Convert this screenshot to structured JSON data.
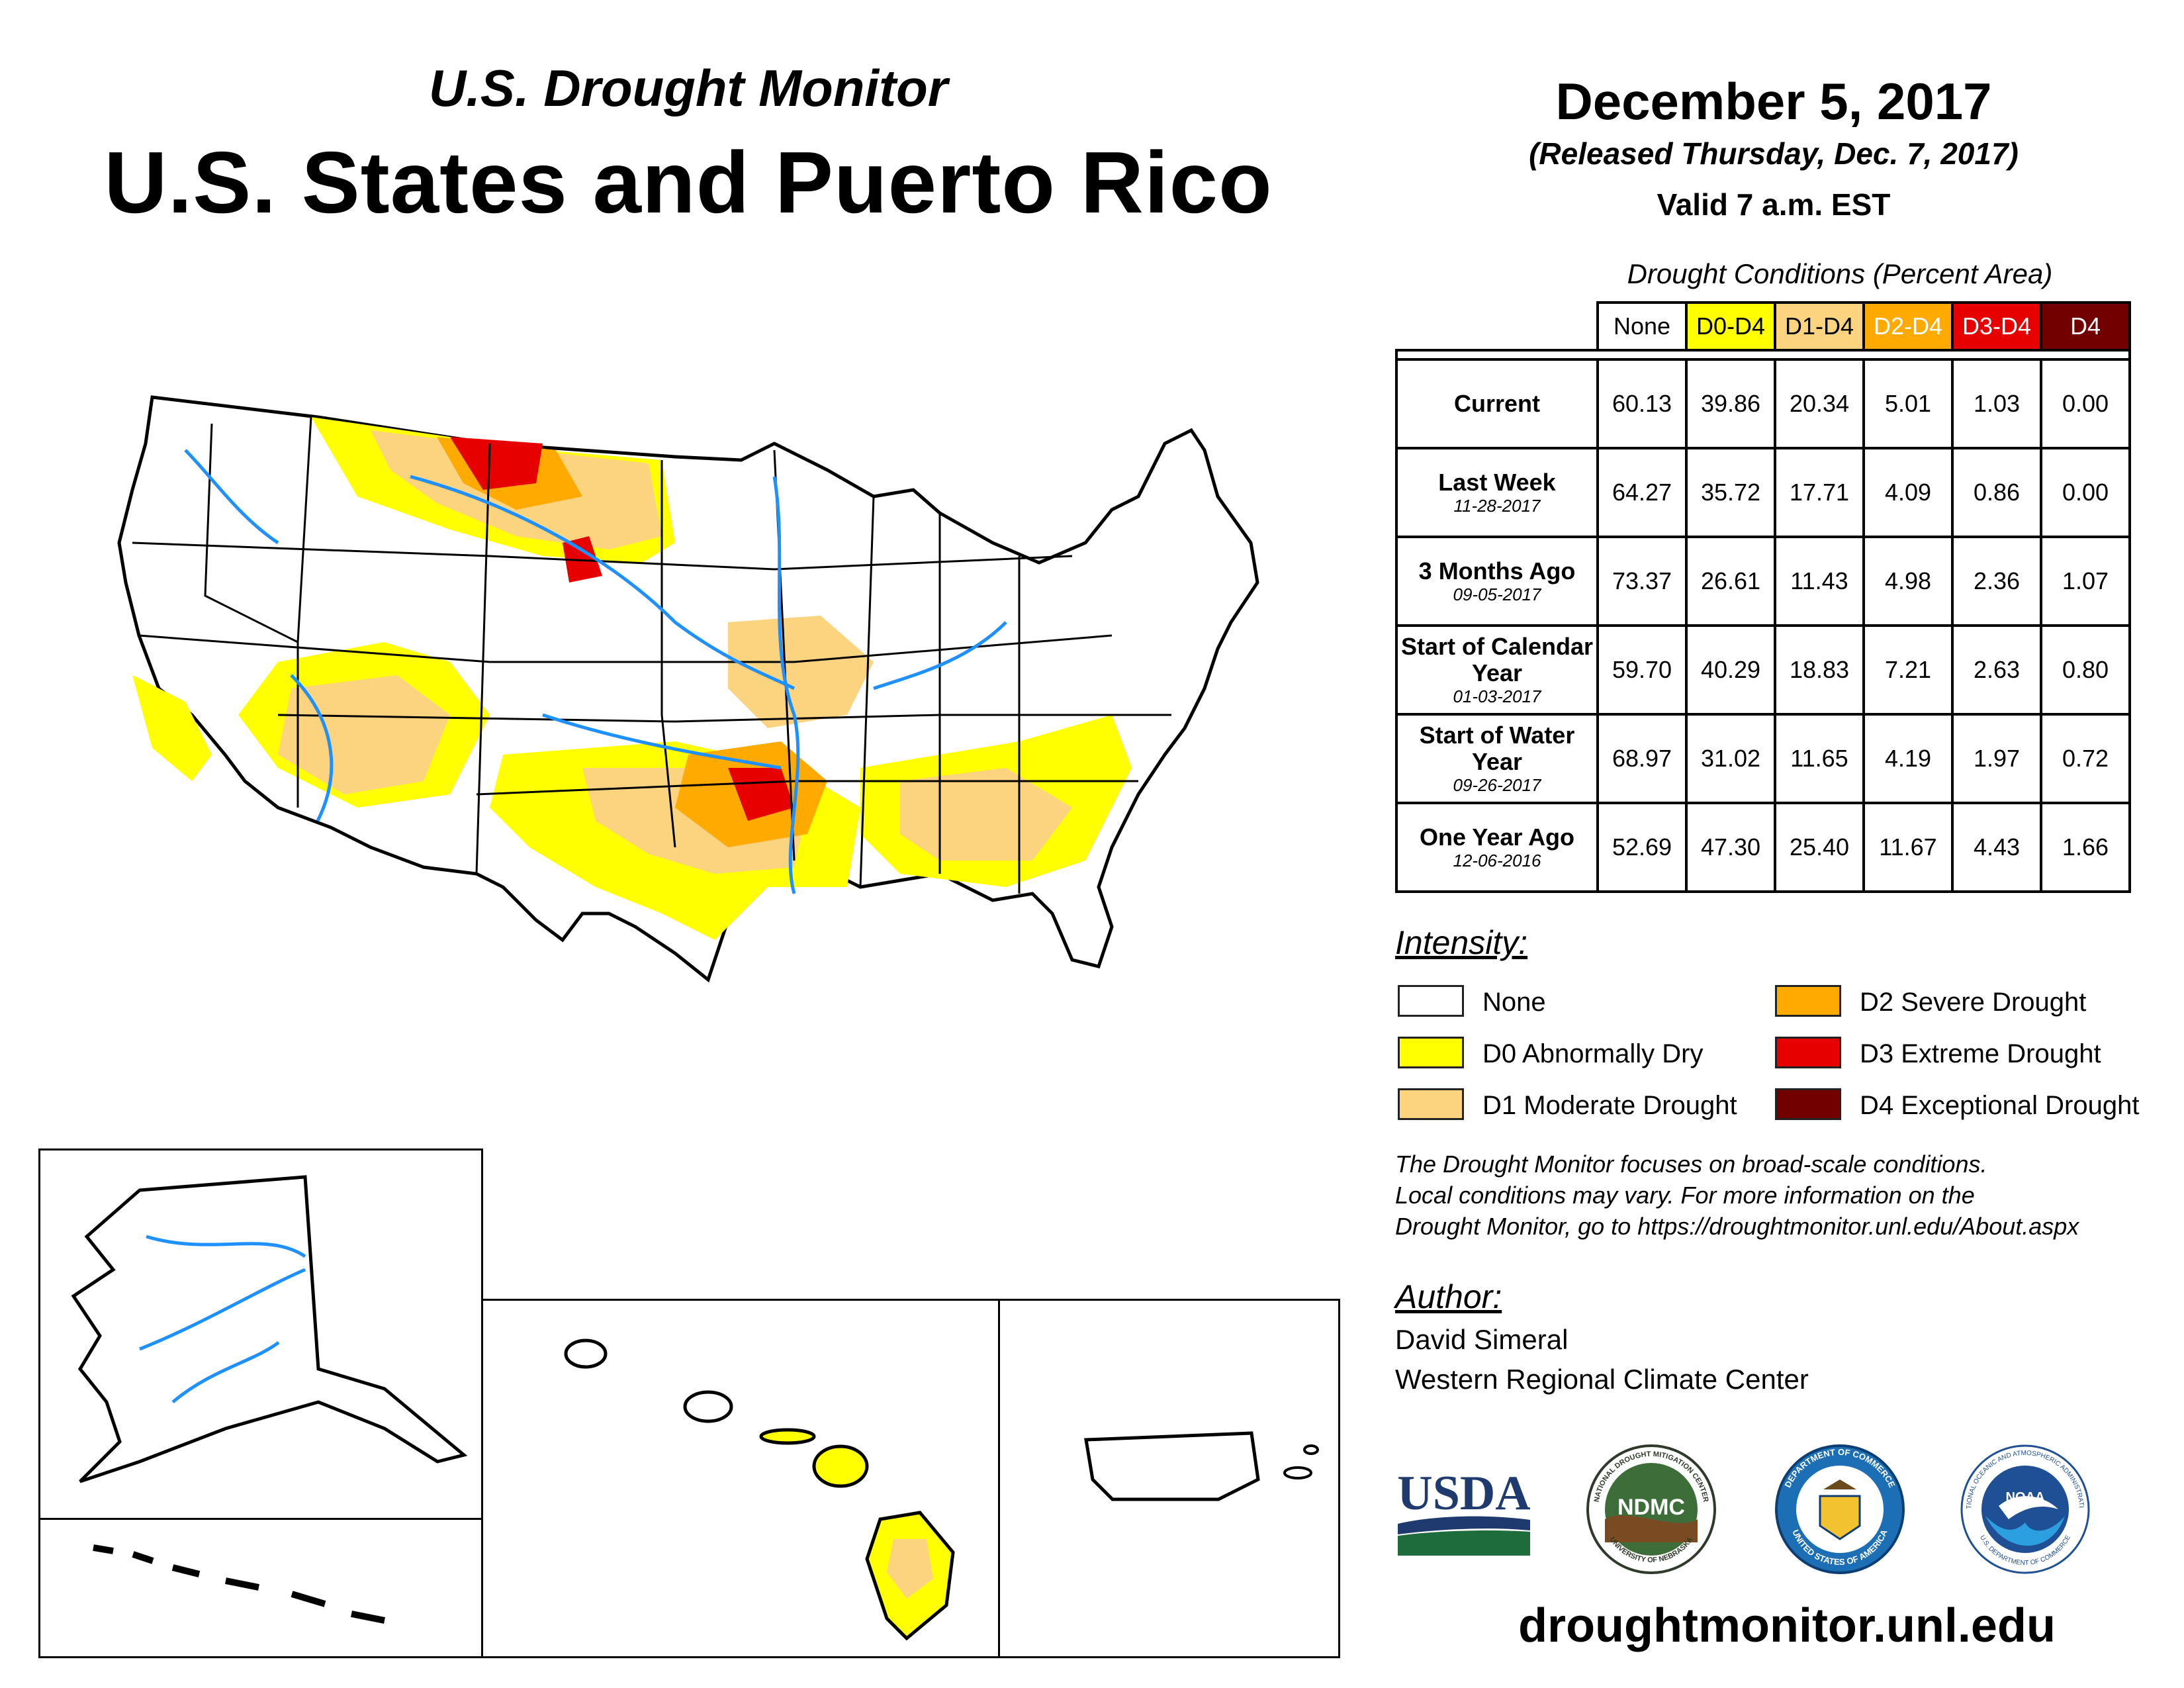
{
  "header": {
    "supertitle": "U.S. Drought Monitor",
    "title": "U.S. States and Puerto Rico",
    "date": "December 5, 2017",
    "released": "(Released Thursday, Dec. 7, 2017)",
    "valid": "Valid 7 a.m. EST"
  },
  "table": {
    "caption": "Drought Conditions (Percent Area)",
    "columns": [
      {
        "label": "None",
        "bg": "#ffffff",
        "fg": "#000000"
      },
      {
        "label": "D0-D4",
        "bg": "#ffff00",
        "fg": "#000000"
      },
      {
        "label": "D1-D4",
        "bg": "#fcd37f",
        "fg": "#000000"
      },
      {
        "label": "D2-D4",
        "bg": "#ffaa00",
        "fg": "#ffffff"
      },
      {
        "label": "D3-D4",
        "bg": "#e60000",
        "fg": "#ffffff"
      },
      {
        "label": "D4",
        "bg": "#730000",
        "fg": "#ffffff"
      }
    ],
    "rows": [
      {
        "label": "Current",
        "date": "",
        "values": [
          "60.13",
          "39.86",
          "20.34",
          "5.01",
          "1.03",
          "0.00"
        ]
      },
      {
        "label": "Last Week",
        "date": "11-28-2017",
        "values": [
          "64.27",
          "35.72",
          "17.71",
          "4.09",
          "0.86",
          "0.00"
        ]
      },
      {
        "label": "3 Months Ago",
        "date": "09-05-2017",
        "values": [
          "73.37",
          "26.61",
          "11.43",
          "4.98",
          "2.36",
          "1.07"
        ]
      },
      {
        "label": "Start of Calendar Year",
        "date": "01-03-2017",
        "values": [
          "59.70",
          "40.29",
          "18.83",
          "7.21",
          "2.63",
          "0.80"
        ]
      },
      {
        "label": "Start of Water Year",
        "date": "09-26-2017",
        "values": [
          "68.97",
          "31.02",
          "11.65",
          "4.19",
          "1.97",
          "0.72"
        ]
      },
      {
        "label": "One Year Ago",
        "date": "12-06-2016",
        "values": [
          "52.69",
          "47.30",
          "25.40",
          "11.67",
          "4.43",
          "1.66"
        ]
      }
    ]
  },
  "legend": {
    "title": "Intensity:",
    "items": [
      {
        "label": "None",
        "color": "#ffffff"
      },
      {
        "label": "D0 Abnormally Dry",
        "color": "#ffff00"
      },
      {
        "label": "D1 Moderate Drought",
        "color": "#fcd37f"
      },
      {
        "label": "D2 Severe Drought",
        "color": "#ffaa00"
      },
      {
        "label": "D3 Extreme Drought",
        "color": "#e60000"
      },
      {
        "label": "D4 Exceptional Drought",
        "color": "#730000"
      }
    ]
  },
  "note": {
    "line1": "The Drought Monitor focuses on broad-scale conditions.",
    "line2": "Local conditions may vary. For more information on the",
    "line3": "Drought Monitor, go to https://droughtmonitor.unl.edu/About.aspx"
  },
  "author": {
    "title": "Author:",
    "name": "David Simeral",
    "org": "Western Regional Climate Center"
  },
  "logos": {
    "usda": "USDA",
    "ndmc": "NDMC",
    "ndmc_ring": "NATIONAL DROUGHT MITIGATION CENTER",
    "ndmc_ring_bottom": "UNIVERSITY OF NEBRASKA",
    "doc_ring": "DEPARTMENT OF COMMERCE",
    "doc_ring_bottom": "UNITED STATES OF AMERICA",
    "noaa": "NOAA",
    "noaa_ring": "NATIONAL OCEANIC AND ATMOSPHERIC ADMINISTRATION",
    "noaa_ring_bottom": "U.S. DEPARTMENT OF COMMERCE"
  },
  "website": "droughtmonitor.unl.edu"
}
